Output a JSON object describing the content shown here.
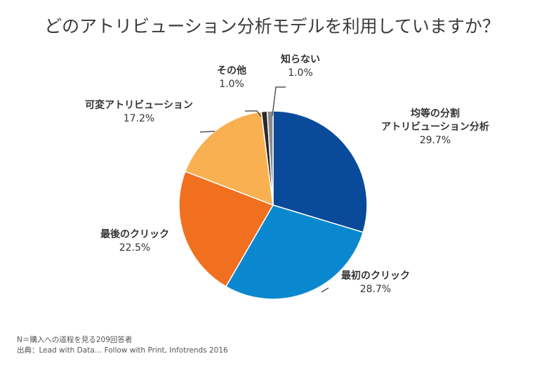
{
  "chart_data": {
    "type": "pie",
    "title": "どのアトリビューション分析モデルを利用していますか？",
    "slices": [
      {
        "label_lines": [
          "均等の分割",
          "アトリビューション分析"
        ],
        "pct_label": "29.7%",
        "value": 29.7,
        "color": "#0a4a9a"
      },
      {
        "label_lines": [
          "最初のクリック"
        ],
        "pct_label": "28.7%",
        "value": 28.7,
        "color": "#0a88cf"
      },
      {
        "label_lines": [
          "最後のクリック"
        ],
        "pct_label": "22.5%",
        "value": 22.5,
        "color": "#f07020"
      },
      {
        "label_lines": [
          "可変アトリビューション"
        ],
        "pct_label": "17.2%",
        "value": 17.2,
        "color": "#f9b051"
      },
      {
        "label_lines": [
          "その他"
        ],
        "pct_label": "1.0%",
        "value": 1.0,
        "color": "#2a2a2a"
      },
      {
        "label_lines": [
          "知らない"
        ],
        "pct_label": "1.0%",
        "value": 1.0,
        "color": "#8a8a8a"
      }
    ],
    "legend": "none"
  },
  "notes": {
    "sample": "N＝購入への道程を見る209回答者",
    "source": "出典：Lead with Data… Follow with Print, Infotrends 2016"
  }
}
